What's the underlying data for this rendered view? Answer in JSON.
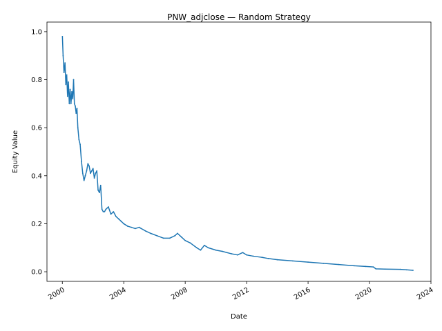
{
  "chart_data": {
    "type": "line",
    "title": "PNW_adjclose — Random Strategy",
    "xlabel": "Date",
    "ylabel": "Equity Value",
    "x_ticks": [
      "2000",
      "2004",
      "2008",
      "2012",
      "2016",
      "2020",
      "2024"
    ],
    "y_ticks": [
      "0.0",
      "0.2",
      "0.4",
      "0.6",
      "0.8",
      "1.0"
    ],
    "xlim": [
      "1999-01-01",
      "2024-01-01"
    ],
    "ylim": [
      -0.04,
      1.04
    ],
    "grid": false,
    "line_color": "#1f77b4",
    "series": [
      {
        "name": "",
        "x": [
          "2000-01-03",
          "2000-01-20",
          "2000-02-10",
          "2000-03-05",
          "2000-03-25",
          "2000-04-15",
          "2000-05-05",
          "2000-05-25",
          "2000-06-15",
          "2000-07-05",
          "2000-07-25",
          "2000-08-15",
          "2000-09-05",
          "2000-09-25",
          "2000-10-15",
          "2000-11-05",
          "2000-11-25",
          "2000-12-15",
          "2001-01-05",
          "2001-02-01",
          "2001-03-01",
          "2001-04-01",
          "2001-05-01",
          "2001-06-01",
          "2001-07-01",
          "2001-08-01",
          "2001-09-01",
          "2001-10-01",
          "2001-11-01",
          "2001-12-01",
          "2002-01-01",
          "2002-02-01",
          "2002-03-01",
          "2002-04-01",
          "2002-05-01",
          "2002-06-01",
          "2002-07-01",
          "2002-08-01",
          "2002-09-01",
          "2002-10-01",
          "2002-11-01",
          "2003-01-01",
          "2003-03-01",
          "2003-05-01",
          "2003-07-01",
          "2003-09-01",
          "2003-11-01",
          "2004-01-01",
          "2004-04-01",
          "2004-07-01",
          "2004-10-01",
          "2005-01-01",
          "2005-06-01",
          "2005-10-01",
          "2006-03-01",
          "2006-08-01",
          "2007-01-01",
          "2007-05-01",
          "2007-07-01",
          "2007-10-01",
          "2008-01-01",
          "2008-05-01",
          "2008-10-01",
          "2009-01-01",
          "2009-04-01",
          "2009-07-01",
          "2010-01-01",
          "2010-06-01",
          "2011-01-01",
          "2011-06-01",
          "2011-10-01",
          "2012-01-01",
          "2012-06-01",
          "2013-01-01",
          "2013-06-01",
          "2014-01-01",
          "2015-01-01",
          "2016-01-01",
          "2017-01-01",
          "2018-01-01",
          "2019-01-01",
          "2019-10-01",
          "2020-04-01",
          "2020-06-01",
          "2021-01-01",
          "2022-01-01",
          "2022-06-01",
          "2022-11-01"
        ],
        "y": [
          0.98,
          0.9,
          0.83,
          0.87,
          0.78,
          0.82,
          0.73,
          0.79,
          0.7,
          0.76,
          0.7,
          0.75,
          0.72,
          0.8,
          0.7,
          0.69,
          0.66,
          0.68,
          0.6,
          0.55,
          0.53,
          0.46,
          0.41,
          0.38,
          0.4,
          0.42,
          0.45,
          0.44,
          0.41,
          0.42,
          0.43,
          0.39,
          0.41,
          0.42,
          0.34,
          0.33,
          0.36,
          0.26,
          0.25,
          0.25,
          0.26,
          0.27,
          0.24,
          0.25,
          0.23,
          0.22,
          0.21,
          0.2,
          0.19,
          0.185,
          0.18,
          0.185,
          0.17,
          0.16,
          0.15,
          0.14,
          0.14,
          0.15,
          0.16,
          0.145,
          0.13,
          0.12,
          0.1,
          0.09,
          0.11,
          0.1,
          0.09,
          0.085,
          0.075,
          0.07,
          0.08,
          0.07,
          0.065,
          0.06,
          0.055,
          0.05,
          0.045,
          0.04,
          0.035,
          0.03,
          0.025,
          0.022,
          0.02,
          0.012,
          0.011,
          0.01,
          0.008,
          0.006
        ]
      }
    ]
  }
}
